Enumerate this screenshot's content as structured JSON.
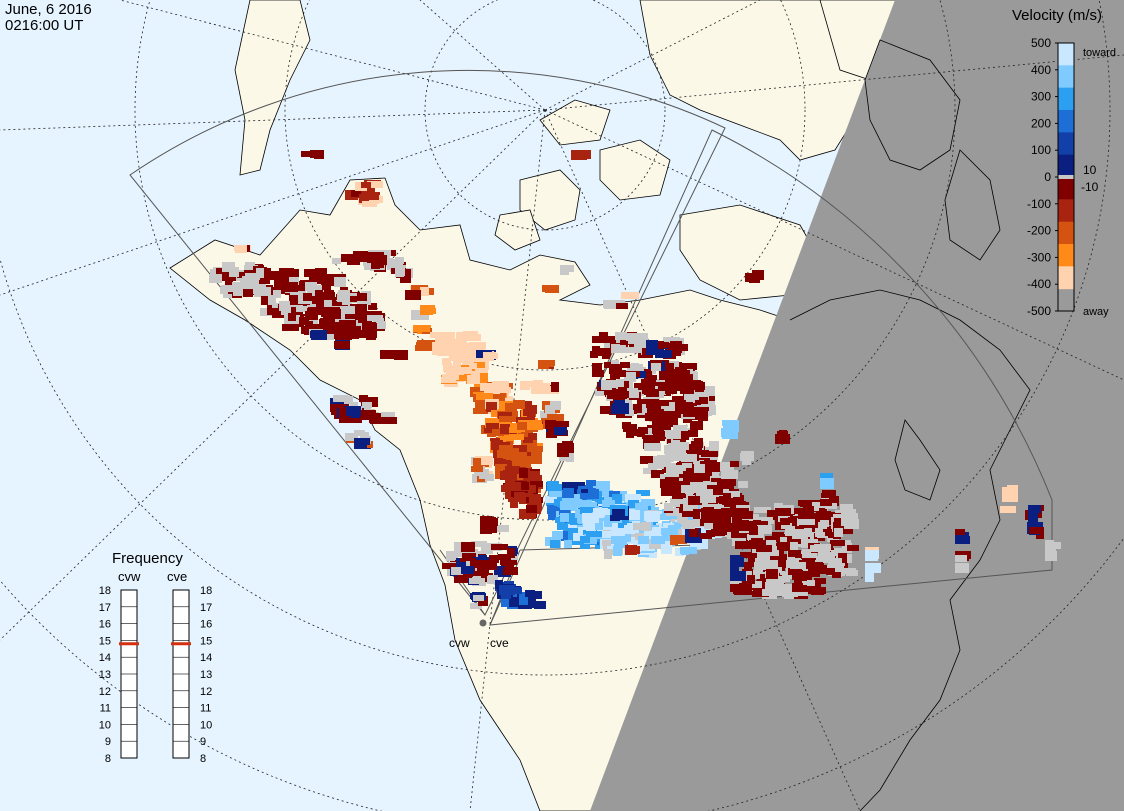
{
  "header": {
    "date": "June, 6 2016",
    "time": "0216:00 UT"
  },
  "velocity_scale": {
    "title": "Velocity (m/s)",
    "ticks": [
      "500",
      "400",
      "300",
      "200",
      "100",
      "0",
      "-100",
      "-200",
      "-300",
      "-400",
      "-500"
    ],
    "extra": [
      "10",
      "-10"
    ],
    "toward_label": "toward",
    "away_label": "away",
    "colors": [
      "#c9e8ff",
      "#7fcbff",
      "#2c9ff0",
      "#1d6ed6",
      "#1240a8",
      "#0a1f80",
      "#c7c7c7",
      "#800000",
      "#a82410",
      "#d45310",
      "#ff8a1a",
      "#ffd3b0"
    ]
  },
  "frequency": {
    "title": "Frequency",
    "radars": [
      {
        "name": "cvw",
        "mhz": 14.8
      },
      {
        "name": "cve",
        "mhz": 14.8
      }
    ],
    "ticks": [
      "18",
      "17",
      "16",
      "15",
      "14",
      "13",
      "12",
      "11",
      "10",
      "9",
      "8"
    ],
    "marker_color": "#d43010"
  },
  "sites": [
    {
      "name": "cvw"
    },
    {
      "name": "cve"
    }
  ],
  "colors": {
    "ocean": "#e6f4ff",
    "land": "#fbf8e8",
    "night": "#9a9a9a",
    "ground_scatter": "#c8c8c8"
  }
}
